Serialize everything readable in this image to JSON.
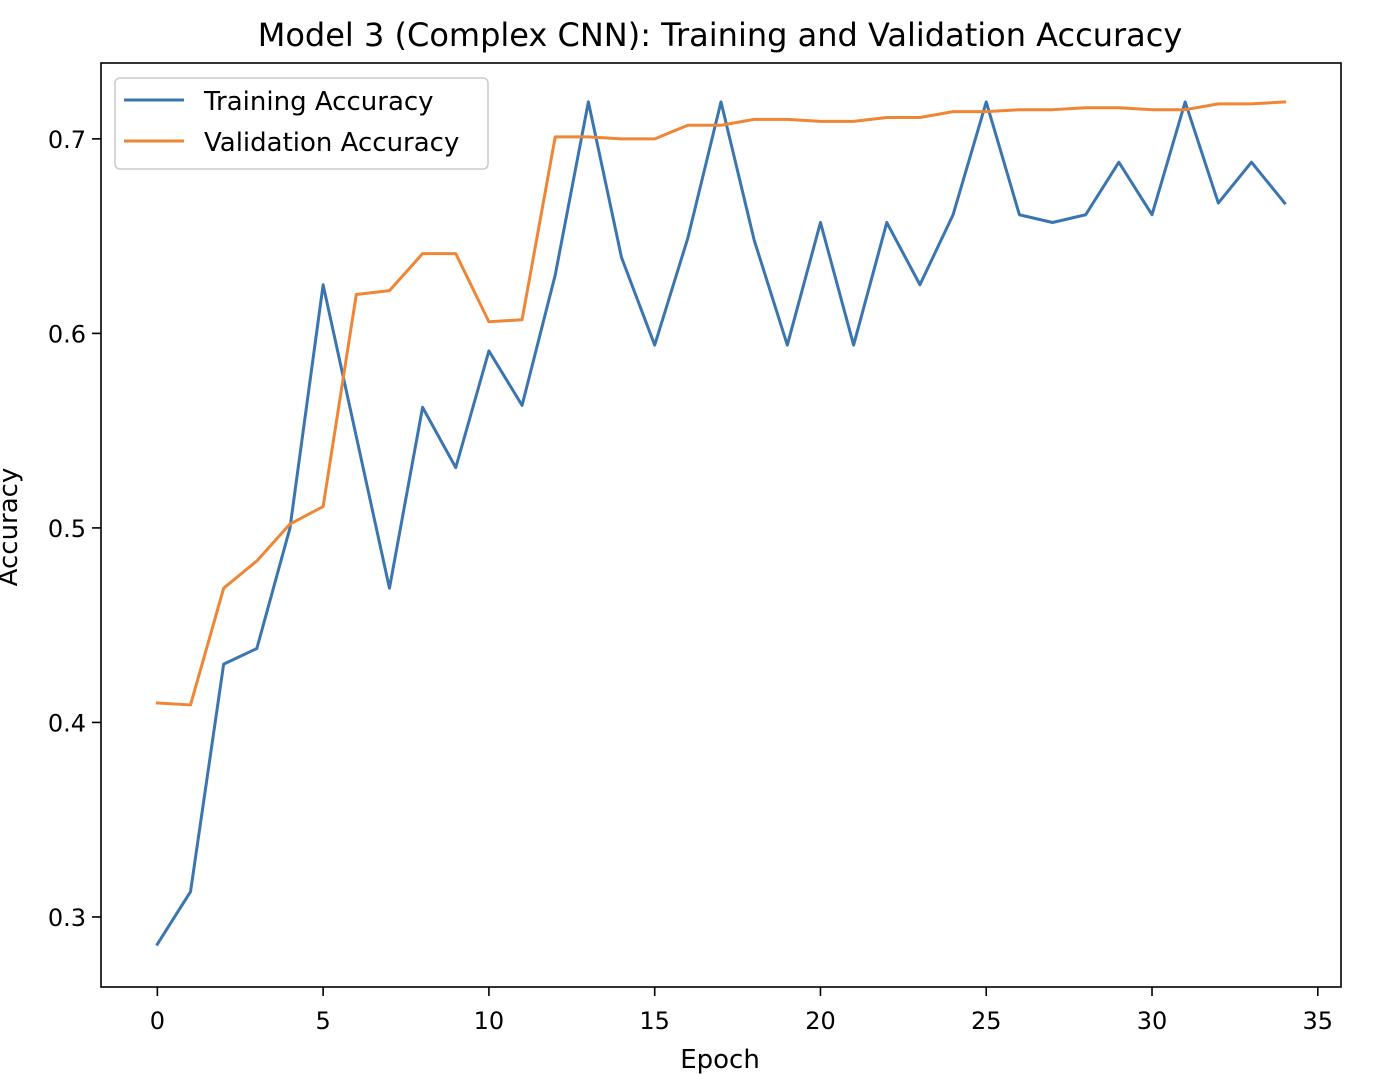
{
  "chart_data": {
    "type": "line",
    "title": "Model 3 (Complex CNN): Training and Validation Accuracy",
    "xlabel": "Epoch",
    "ylabel": "Accuracy",
    "xlim": [
      -1.7,
      35.7
    ],
    "ylim": [
      0.264,
      0.739
    ],
    "xticks": [
      0,
      5,
      10,
      15,
      20,
      25,
      30,
      35
    ],
    "yticks": [
      0.3,
      0.4,
      0.5,
      0.6,
      0.7
    ],
    "grid": false,
    "legend": "top-left",
    "x": [
      0,
      1,
      2,
      3,
      4,
      5,
      6,
      7,
      8,
      9,
      10,
      11,
      12,
      13,
      14,
      15,
      16,
      17,
      18,
      19,
      20,
      21,
      22,
      23,
      24,
      25,
      26,
      27,
      28,
      29,
      30,
      31,
      32,
      33,
      34
    ],
    "series": [
      {
        "name": "Training Accuracy",
        "color": "#3b75af",
        "values": [
          0.286,
          0.313,
          0.43,
          0.438,
          0.5,
          0.625,
          0.547,
          0.469,
          0.562,
          0.531,
          0.591,
          0.563,
          0.63,
          0.719,
          0.639,
          0.594,
          0.649,
          0.719,
          0.648,
          0.594,
          0.657,
          0.594,
          0.657,
          0.625,
          0.661,
          0.719,
          0.661,
          0.657,
          0.661,
          0.688,
          0.661,
          0.719,
          0.667,
          0.688,
          0.667
        ]
      },
      {
        "name": "Validation Accuracy",
        "color": "#ef8636",
        "values": [
          0.41,
          0.409,
          0.469,
          0.483,
          0.502,
          0.511,
          0.62,
          0.622,
          0.641,
          0.641,
          0.606,
          0.607,
          0.701,
          0.701,
          0.7,
          0.7,
          0.707,
          0.707,
          0.71,
          0.71,
          0.709,
          0.709,
          0.711,
          0.711,
          0.714,
          0.714,
          0.715,
          0.715,
          0.716,
          0.716,
          0.715,
          0.715,
          0.718,
          0.718,
          0.719
        ]
      }
    ]
  }
}
